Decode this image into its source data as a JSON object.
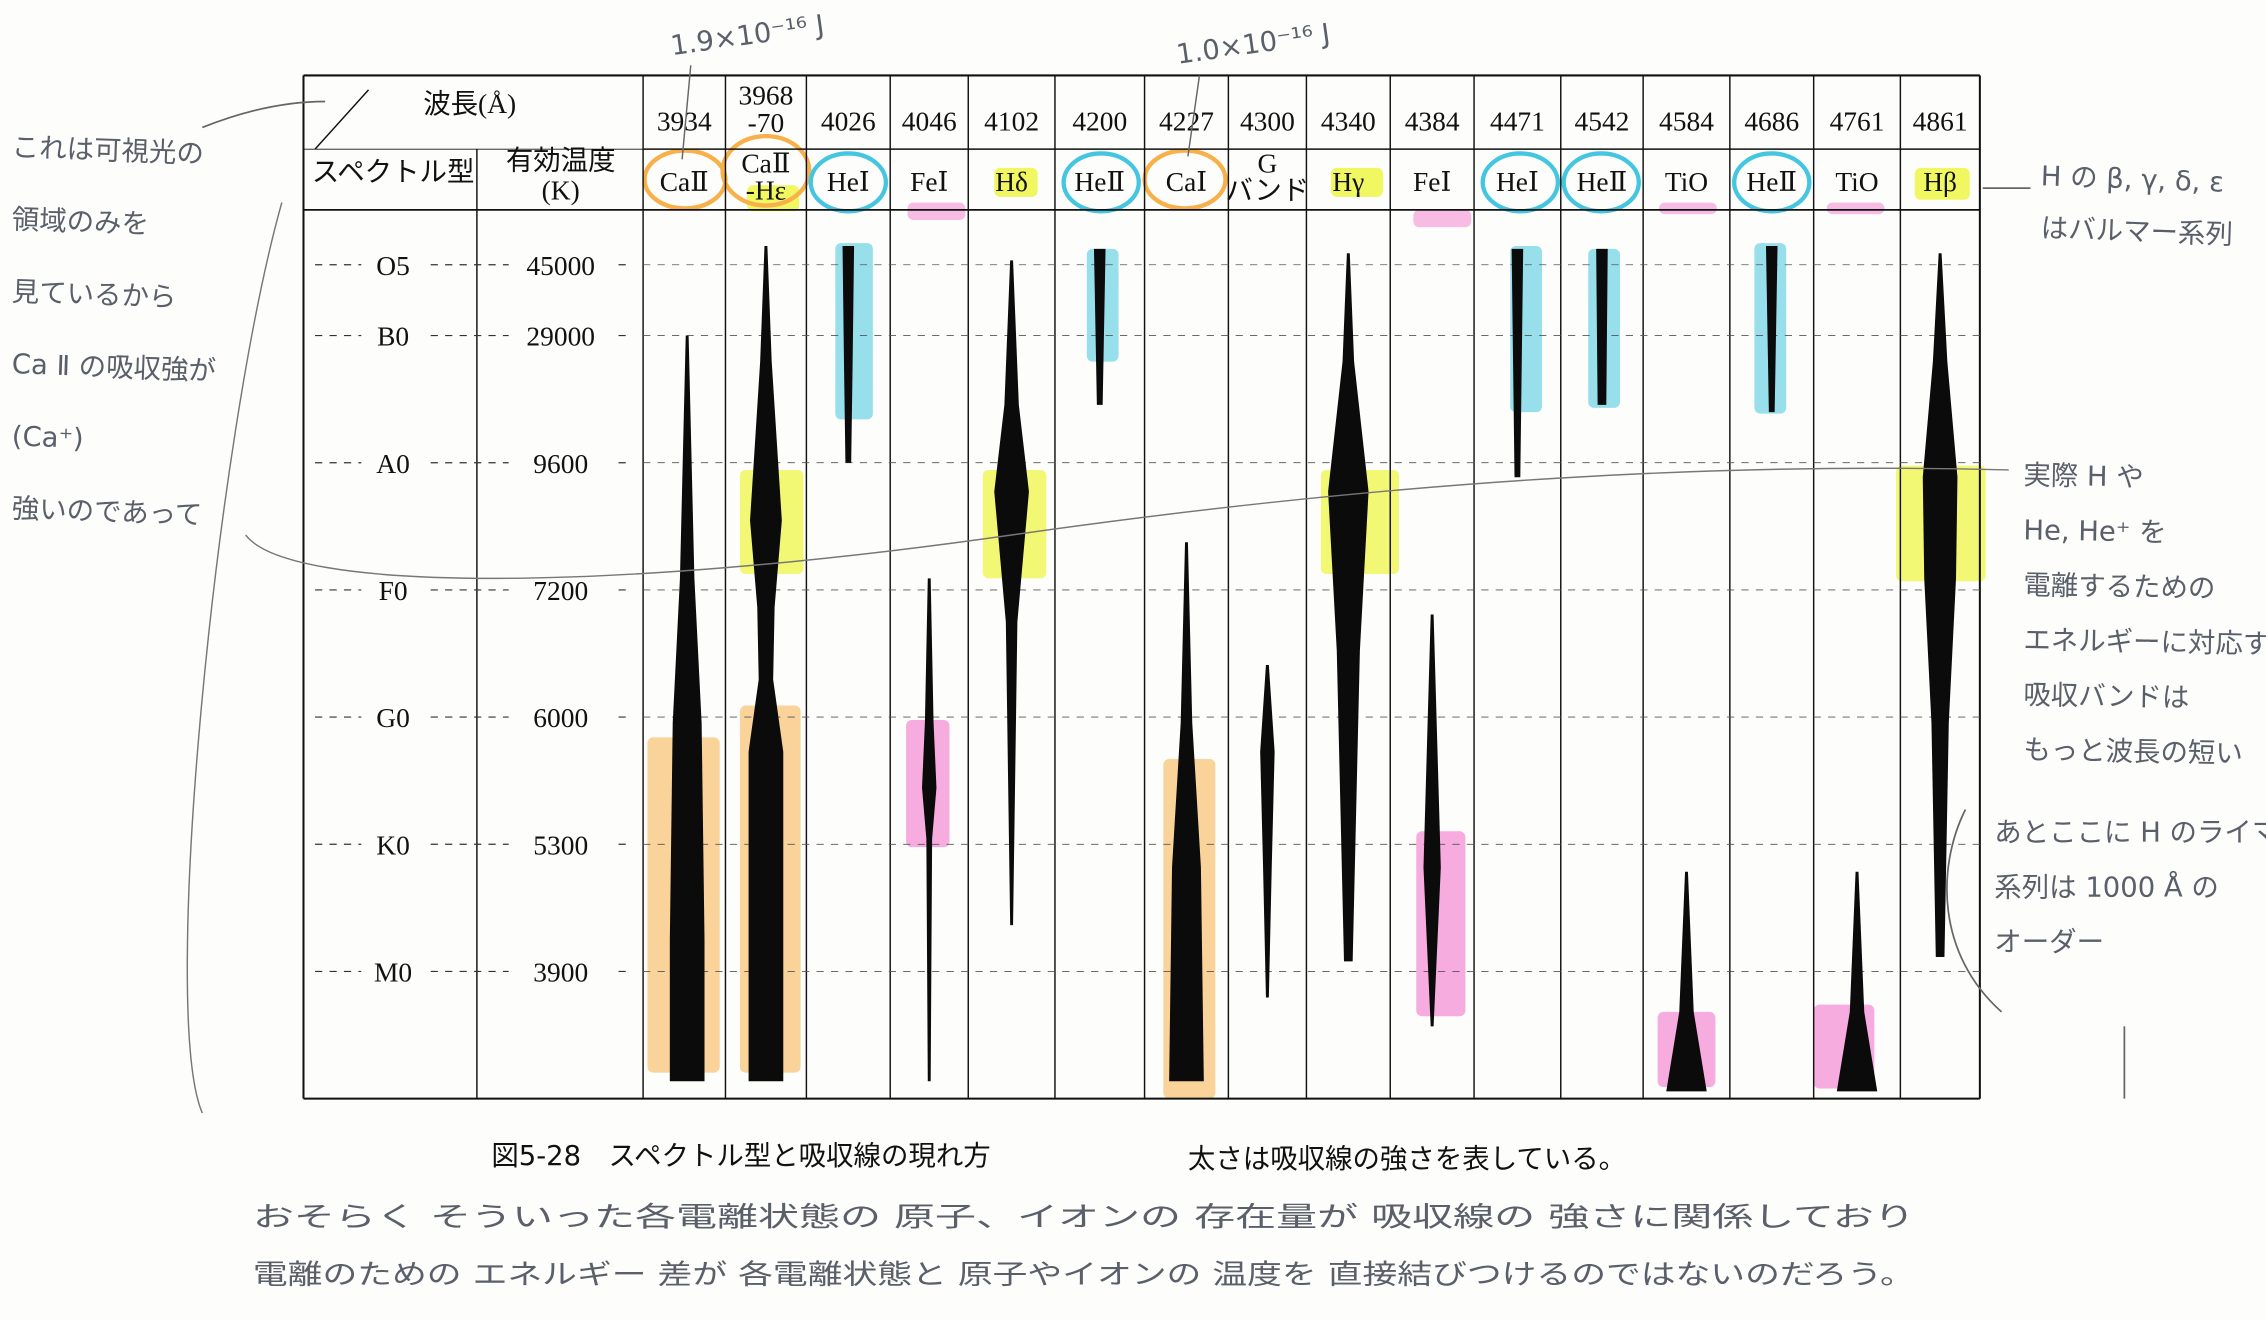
{
  "header": {
    "wavelength": "波長(Å)",
    "spectral_type": "スペクトル型",
    "temperature": [
      "有効温度",
      "(K)"
    ]
  },
  "columns": [
    {
      "wavelength": "3934",
      "species": "CaⅡ"
    },
    {
      "wavelength": [
        "3968",
        "-70"
      ],
      "species": [
        "CaⅡ",
        "-Hε"
      ]
    },
    {
      "wavelength": "4026",
      "species": "HeⅠ"
    },
    {
      "wavelength": "4046",
      "species": "FeⅠ"
    },
    {
      "wavelength": "4102",
      "species": "Hδ"
    },
    {
      "wavelength": "4200",
      "species": "HeⅡ"
    },
    {
      "wavelength": "4227",
      "species": "CaⅠ"
    },
    {
      "wavelength": "4300",
      "species": [
        "G",
        "バンド"
      ]
    },
    {
      "wavelength": "4340",
      "species": "Hγ"
    },
    {
      "wavelength": "4384",
      "species": "FeⅠ"
    },
    {
      "wavelength": "4471",
      "species": "HeⅠ"
    },
    {
      "wavelength": "4542",
      "species": "HeⅡ"
    },
    {
      "wavelength": "4584",
      "species": "TiO"
    },
    {
      "wavelength": "4686",
      "species": "HeⅡ"
    },
    {
      "wavelength": "4761",
      "species": "TiO"
    },
    {
      "wavelength": "4861",
      "species": "Hβ"
    }
  ],
  "rows": [
    {
      "type": "O5",
      "temperature": "45000"
    },
    {
      "type": "B0",
      "temperature": "29000"
    },
    {
      "type": "A0",
      "temperature": "9600"
    },
    {
      "type": "F0",
      "temperature": "7200"
    },
    {
      "type": "G0",
      "temperature": "6000"
    },
    {
      "type": "K0",
      "temperature": "5300"
    },
    {
      "type": "M0",
      "temperature": "3900"
    }
  ],
  "caption": {
    "title": "図5-28　スペクトル型と吸収線の現れ方",
    "note": "太さは吸収線の強さを表している。"
  },
  "handwriting": {
    "energy_caii": "1.9×10⁻¹⁶ J",
    "energy_cai": "1.0×10⁻¹⁶ J",
    "left": [
      "これは可視光の",
      "領域のみを",
      "見ているから",
      "Ca Ⅱ の吸収強が",
      "(Ca⁺)",
      "強いのであって"
    ],
    "right_top": [
      "H の β, γ, δ, ε",
      "はバルマー系列"
    ],
    "right_middle": [
      "実際 H や",
      "He, He⁺ を",
      "電離するための",
      "エネルギーに対応する",
      "吸収バンドは",
      "もっと波長の短い"
    ],
    "right_bottom": [
      "あとここに H のライマン",
      "系列は 1000 Å の",
      "オーダー"
    ],
    "bottom": [
      "おそらく そういった各電離状態の 原子、イオンの 存在量が 吸収線の 強さに関係しており",
      "電離のための エネルギー 差が 各電離状態と 原子やイオンの 温度を 直接結びつけるのではないのだろう。"
    ]
  }
}
